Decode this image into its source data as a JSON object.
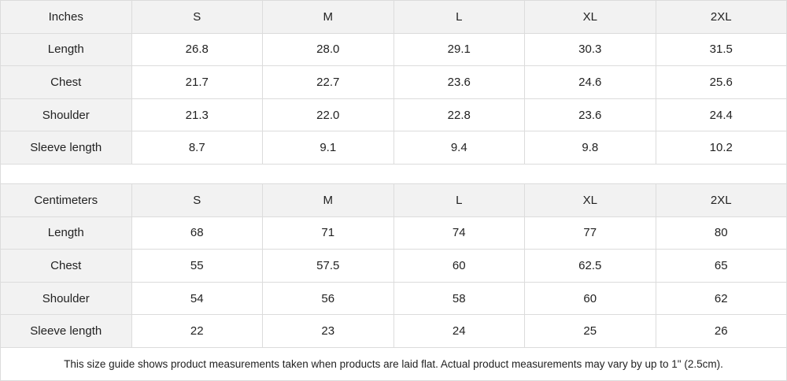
{
  "sizes": [
    "S",
    "M",
    "L",
    "XL",
    "2XL"
  ],
  "inches": {
    "label": "Inches",
    "rows": [
      {
        "name": "Length",
        "values": [
          "26.8",
          "28.0",
          "29.1",
          "30.3",
          "31.5"
        ]
      },
      {
        "name": "Chest",
        "values": [
          "21.7",
          "22.7",
          "23.6",
          "24.6",
          "25.6"
        ]
      },
      {
        "name": "Shoulder",
        "values": [
          "21.3",
          "22.0",
          "22.8",
          "23.6",
          "24.4"
        ]
      },
      {
        "name": "Sleeve length",
        "values": [
          "8.7",
          "9.1",
          "9.4",
          "9.8",
          "10.2"
        ]
      }
    ]
  },
  "centimeters": {
    "label": "Centimeters",
    "rows": [
      {
        "name": "Length",
        "values": [
          "68",
          "71",
          "74",
          "77",
          "80"
        ]
      },
      {
        "name": "Chest",
        "values": [
          "55",
          "57.5",
          "60",
          "62.5",
          "65"
        ]
      },
      {
        "name": "Shoulder",
        "values": [
          "54",
          "56",
          "58",
          "60",
          "62"
        ]
      },
      {
        "name": "Sleeve length",
        "values": [
          "22",
          "23",
          "24",
          "25",
          "26"
        ]
      }
    ]
  },
  "note": "This size guide shows product measurements taken when products are laid flat.  Actual product measurements may vary by up to 1\" (2.5cm)."
}
